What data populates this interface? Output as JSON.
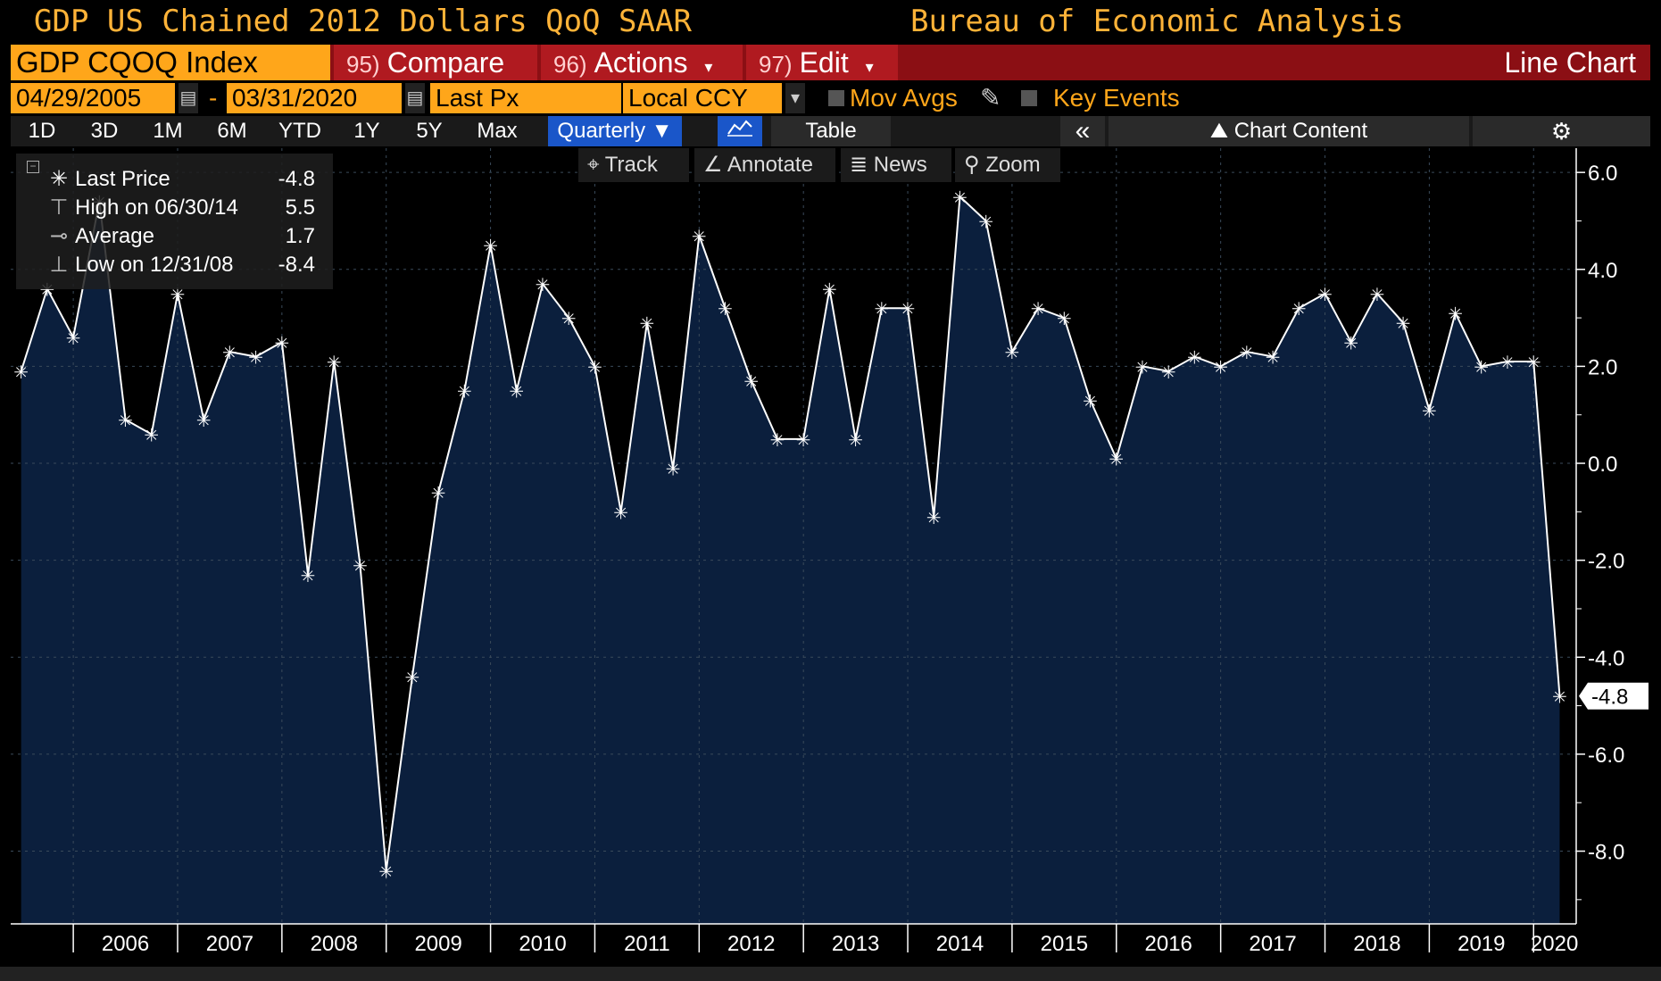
{
  "header": {
    "title_left": "GDP US Chained 2012 Dollars QoQ SAAR",
    "title_right": "Bureau of Economic Analysis"
  },
  "toolbar": {
    "ticker": "GDP CQOQ Index",
    "compare_num": "95)",
    "compare_label": "Compare",
    "actions_num": "96)",
    "actions_label": "Actions",
    "edit_num": "97)",
    "edit_label": "Edit",
    "chart_type": "Line Chart"
  },
  "settings": {
    "start_date": "04/29/2005",
    "end_date": "03/31/2020",
    "date_sep": "-",
    "field": "Last Px",
    "currency": "Local CCY",
    "mov_avgs": "Mov Avgs",
    "key_events": "Key Events"
  },
  "ranges": [
    "1D",
    "3D",
    "1M",
    "6M",
    "YTD",
    "1Y",
    "5Y",
    "Max"
  ],
  "periodicity": "Quarterly",
  "table_label": "Table",
  "collapse_label": "«",
  "chart_content_label": "Chart Content",
  "tools": {
    "track": "Track",
    "annotate": "Annotate",
    "news": "News",
    "zoom": "Zoom"
  },
  "legend": {
    "last_label": "Last Price",
    "last_value": "-4.8",
    "high_label": "High on 06/30/14",
    "high_value": "5.5",
    "avg_label": "Average",
    "avg_value": "1.7",
    "low_label": "Low on 12/31/08",
    "low_value": "-8.4"
  },
  "colors": {
    "accent": "#ffa61a",
    "menu_bar": "#8b0f14",
    "area_fill": "#0b1f3d",
    "line": "#ffffff"
  },
  "chart_data": {
    "type": "area",
    "title": "GDP US Chained 2012 Dollars QoQ SAAR",
    "ylabel": "",
    "xlabel": "",
    "ylim": [
      -9.5,
      6.5
    ],
    "yticks": [
      6.0,
      4.0,
      2.0,
      0.0,
      -2.0,
      -4.0,
      -6.0,
      -8.0
    ],
    "ytick_labels": [
      "6.0",
      "4.0",
      "2.0",
      "0.0",
      "-2.0",
      "-4.0",
      "-6.0",
      "-8.0"
    ],
    "xlim": [
      2005.4,
      2020.4
    ],
    "year_labels": [
      "2006",
      "2007",
      "2008",
      "2009",
      "2010",
      "2011",
      "2012",
      "2013",
      "2014",
      "2015",
      "2016",
      "2017",
      "2018",
      "2019",
      "2020"
    ],
    "last_value_label": "-4.8",
    "series": [
      {
        "name": "GDP CQOQ Index",
        "x": [
          2005.5,
          2005.75,
          2006.0,
          2006.25,
          2006.5,
          2006.75,
          2007.0,
          2007.25,
          2007.5,
          2007.75,
          2008.0,
          2008.25,
          2008.5,
          2008.75,
          2009.0,
          2009.25,
          2009.5,
          2009.75,
          2010.0,
          2010.25,
          2010.5,
          2010.75,
          2011.0,
          2011.25,
          2011.5,
          2011.75,
          2012.0,
          2012.25,
          2012.5,
          2012.75,
          2013.0,
          2013.25,
          2013.5,
          2013.75,
          2014.0,
          2014.25,
          2014.5,
          2014.75,
          2015.0,
          2015.25,
          2015.5,
          2015.75,
          2016.0,
          2016.25,
          2016.5,
          2016.75,
          2017.0,
          2017.25,
          2017.5,
          2017.75,
          2018.0,
          2018.25,
          2018.5,
          2018.75,
          2019.0,
          2019.25,
          2019.5,
          2019.75,
          2020.0,
          2020.25
        ],
        "values": [
          1.9,
          3.6,
          2.6,
          5.4,
          0.9,
          0.6,
          3.5,
          0.9,
          2.3,
          2.2,
          2.5,
          -2.3,
          2.1,
          -2.1,
          -8.4,
          -4.4,
          -0.6,
          1.5,
          4.5,
          1.5,
          3.7,
          3.0,
          2.0,
          -1.0,
          2.9,
          -0.1,
          4.7,
          3.2,
          1.7,
          0.5,
          0.5,
          3.6,
          0.5,
          3.2,
          3.2,
          -1.1,
          5.5,
          5.0,
          2.3,
          3.2,
          3.0,
          1.3,
          0.1,
          2.0,
          1.9,
          2.2,
          2.0,
          2.3,
          2.2,
          3.2,
          3.5,
          2.5,
          3.5,
          2.9,
          1.1,
          3.1,
          2.0,
          2.1,
          2.1,
          -4.8
        ]
      }
    ]
  }
}
